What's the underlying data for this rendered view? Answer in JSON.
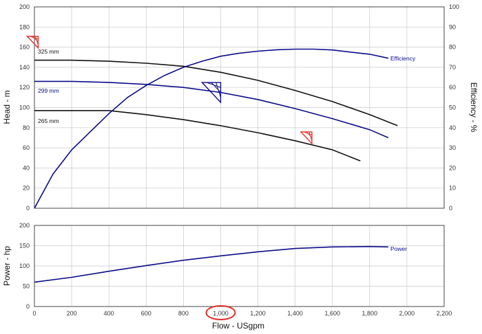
{
  "colors": {
    "black": "#111111",
    "blue": "#0b0b8a",
    "red": "#e8302a",
    "grid": "#c8c8c8"
  },
  "chart_data": [
    {
      "type": "line",
      "ylabel": "Head - m",
      "y2label": "Efficiency - %",
      "xlim": [
        0,
        2200
      ],
      "ylim": [
        0,
        200
      ],
      "y2lim": [
        0,
        100
      ],
      "y_ticks": [
        "0",
        "20",
        "40",
        "60",
        "80",
        "100",
        "120",
        "140",
        "160",
        "180",
        "200"
      ],
      "y2_ticks": [
        "0",
        "10",
        "20",
        "30",
        "40",
        "50",
        "60",
        "70",
        "80",
        "90",
        "100"
      ],
      "grid": true,
      "series": [
        {
          "name": "325 mm",
          "color": "black",
          "axis": "left",
          "x": [
            0,
            200,
            400,
            600,
            800,
            1000,
            1200,
            1400,
            1600,
            1800,
            1950
          ],
          "values": [
            147,
            147,
            146,
            144,
            141,
            135,
            127,
            117,
            106,
            93,
            82
          ]
        },
        {
          "name": "299 mm",
          "color": "blue",
          "axis": "left",
          "x": [
            0,
            200,
            400,
            600,
            800,
            1000,
            1200,
            1400,
            1600,
            1800,
            1900
          ],
          "values": [
            126,
            126,
            125,
            123,
            120,
            115,
            108,
            99,
            89,
            78,
            70
          ]
        },
        {
          "name": "265 mm",
          "color": "black",
          "axis": "left",
          "x": [
            0,
            200,
            400,
            600,
            800,
            1000,
            1200,
            1400,
            1600,
            1750
          ],
          "values": [
            97,
            97,
            97,
            93,
            88,
            82,
            75,
            67,
            58,
            47
          ]
        },
        {
          "name": "Efficiency",
          "color": "blue",
          "axis": "right",
          "x": [
            0,
            100,
            200,
            300,
            400,
            500,
            600,
            700,
            800,
            900,
            1000,
            1100,
            1200,
            1300,
            1400,
            1500,
            1600,
            1700,
            1800,
            1900
          ],
          "values": [
            0,
            17,
            29,
            38,
            47,
            55,
            61,
            66,
            70,
            73,
            75.5,
            77,
            78,
            78.7,
            79,
            79,
            78.6,
            77.5,
            76.5,
            74.5
          ]
        }
      ],
      "markers": [
        {
          "x": 20,
          "y": 165,
          "color": "red",
          "size": "small"
        },
        {
          "x": 1000,
          "y": 115,
          "color": "blue",
          "size": "large"
        },
        {
          "x": 1490,
          "y": 70,
          "color": "red",
          "size": "small"
        }
      ]
    },
    {
      "type": "line",
      "xlabel": "Flow - USgpm",
      "ylabel": "Power - hp",
      "xlim": [
        0,
        2200
      ],
      "ylim": [
        0,
        200
      ],
      "x_ticks": [
        "0",
        "200",
        "400",
        "600",
        "800",
        "1,000",
        "1,200",
        "1,400",
        "1,600",
        "1,800",
        "2,000",
        "2,200"
      ],
      "y_ticks": [
        "0",
        "50",
        "100",
        "150",
        "200"
      ],
      "grid": true,
      "series": [
        {
          "name": "Power",
          "color": "blue",
          "x": [
            0,
            200,
            400,
            600,
            800,
            1000,
            1200,
            1400,
            1600,
            1800,
            1900
          ],
          "values": [
            60,
            72,
            87,
            101,
            114,
            125,
            135,
            143,
            147,
            148,
            147
          ]
        }
      ],
      "annotations": [
        {
          "type": "circle",
          "target_tick": "1,000",
          "color": "red"
        }
      ]
    }
  ]
}
